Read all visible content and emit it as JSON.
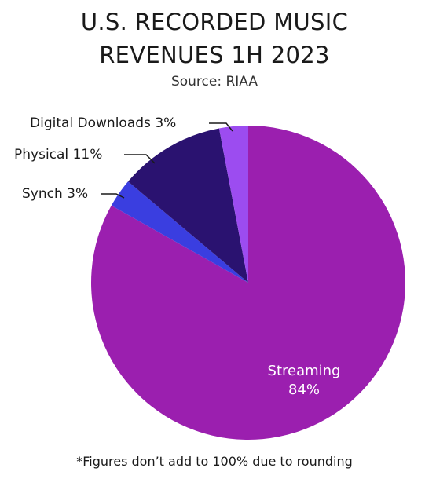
{
  "chart_data": {
    "type": "pie",
    "title_lines": [
      "U.S. RECORDED MUSIC",
      "REVENUES 1H 2023"
    ],
    "subtitle": "Source: RIAA",
    "slices": [
      {
        "label": "Streaming",
        "value": 84,
        "value_label": "84%",
        "color": "#9b1faf"
      },
      {
        "label": "Synch",
        "value": 3,
        "value_label": "3%",
        "color": "#3a3ee0"
      },
      {
        "label": "Physical",
        "value": 11,
        "value_label": "11%",
        "color": "#2a1270"
      },
      {
        "label": "Digital Downloads",
        "value": 3,
        "value_label": "3%",
        "color": "#9c4cf0"
      }
    ],
    "footnote": "*Figures don’t add to 100% due to rounding"
  }
}
